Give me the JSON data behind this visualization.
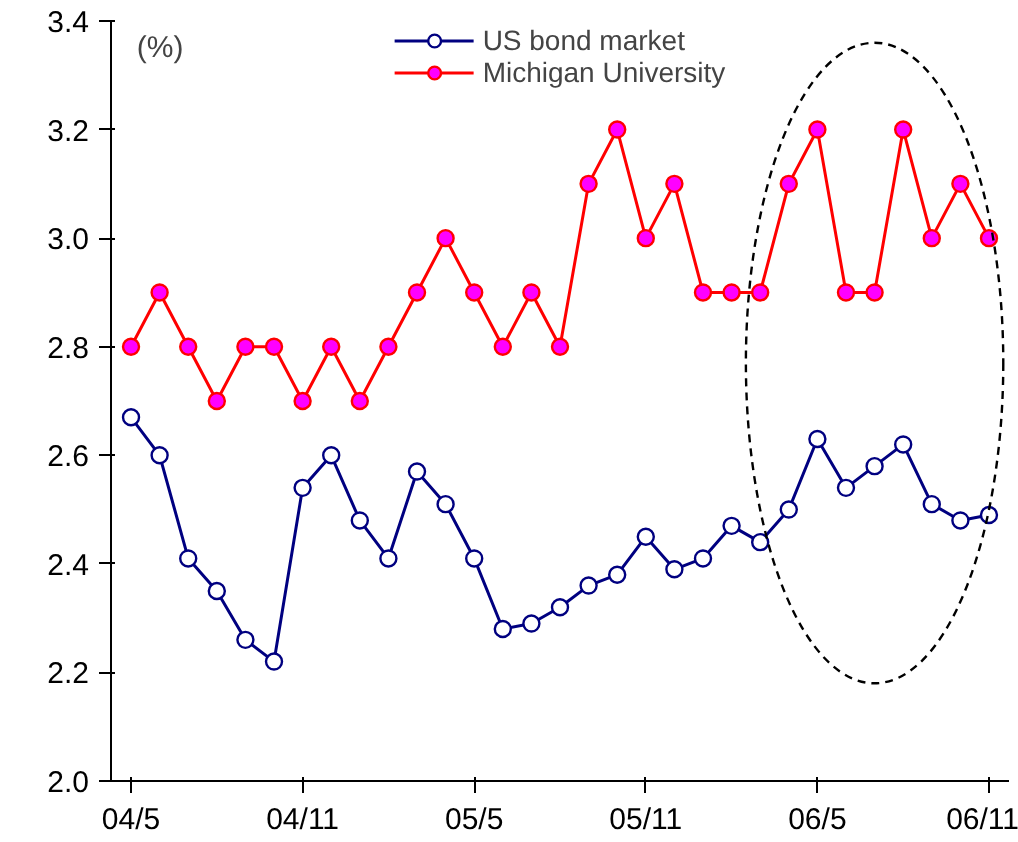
{
  "chart_data": {
    "type": "line",
    "ylabel": "(%)",
    "categories": [
      "04/5",
      null,
      null,
      null,
      null,
      null,
      "04/11",
      null,
      null,
      null,
      null,
      null,
      "05/5",
      null,
      null,
      null,
      null,
      null,
      "05/11",
      null,
      null,
      null,
      null,
      null,
      "06/5",
      null,
      null,
      null,
      null,
      null,
      "06/11"
    ],
    "series": [
      {
        "name": "US bond market",
        "color": "#000080",
        "values": [
          2.67,
          2.6,
          2.41,
          2.35,
          2.26,
          2.22,
          2.54,
          2.6,
          2.48,
          2.41,
          2.57,
          2.51,
          2.41,
          2.28,
          2.29,
          2.32,
          2.36,
          2.38,
          2.45,
          2.39,
          2.41,
          2.47,
          2.44,
          2.5,
          2.63,
          2.54,
          2.58,
          2.62,
          2.51,
          2.48,
          2.49
        ]
      },
      {
        "name": "Michigan University",
        "color": "#ff0000",
        "values": [
          2.8,
          2.9,
          2.8,
          2.7,
          2.8,
          2.8,
          2.7,
          2.8,
          2.7,
          2.8,
          2.9,
          3.0,
          2.9,
          2.8,
          2.9,
          2.8,
          3.1,
          3.2,
          3.0,
          3.1,
          2.9,
          2.9,
          2.9,
          3.1,
          3.2,
          2.9,
          2.9,
          3.2,
          3.0,
          3.1,
          3.0
        ]
      }
    ],
    "ylim": [
      2.0,
      3.4
    ],
    "yticks": [
      {
        "value": 2.0,
        "label": "2.0"
      },
      {
        "value": 2.2,
        "label": "2.2"
      },
      {
        "value": 2.4,
        "label": "2.4"
      },
      {
        "value": 2.6,
        "label": "2.6"
      },
      {
        "value": 2.8,
        "label": "2.8"
      },
      {
        "value": 3.0,
        "label": "3.0"
      },
      {
        "value": 3.2,
        "label": "3.2"
      },
      {
        "value": 3.4,
        "label": "3.4"
      }
    ],
    "grid": false,
    "legend": "top",
    "marker": "circle",
    "line_style": "solid"
  }
}
